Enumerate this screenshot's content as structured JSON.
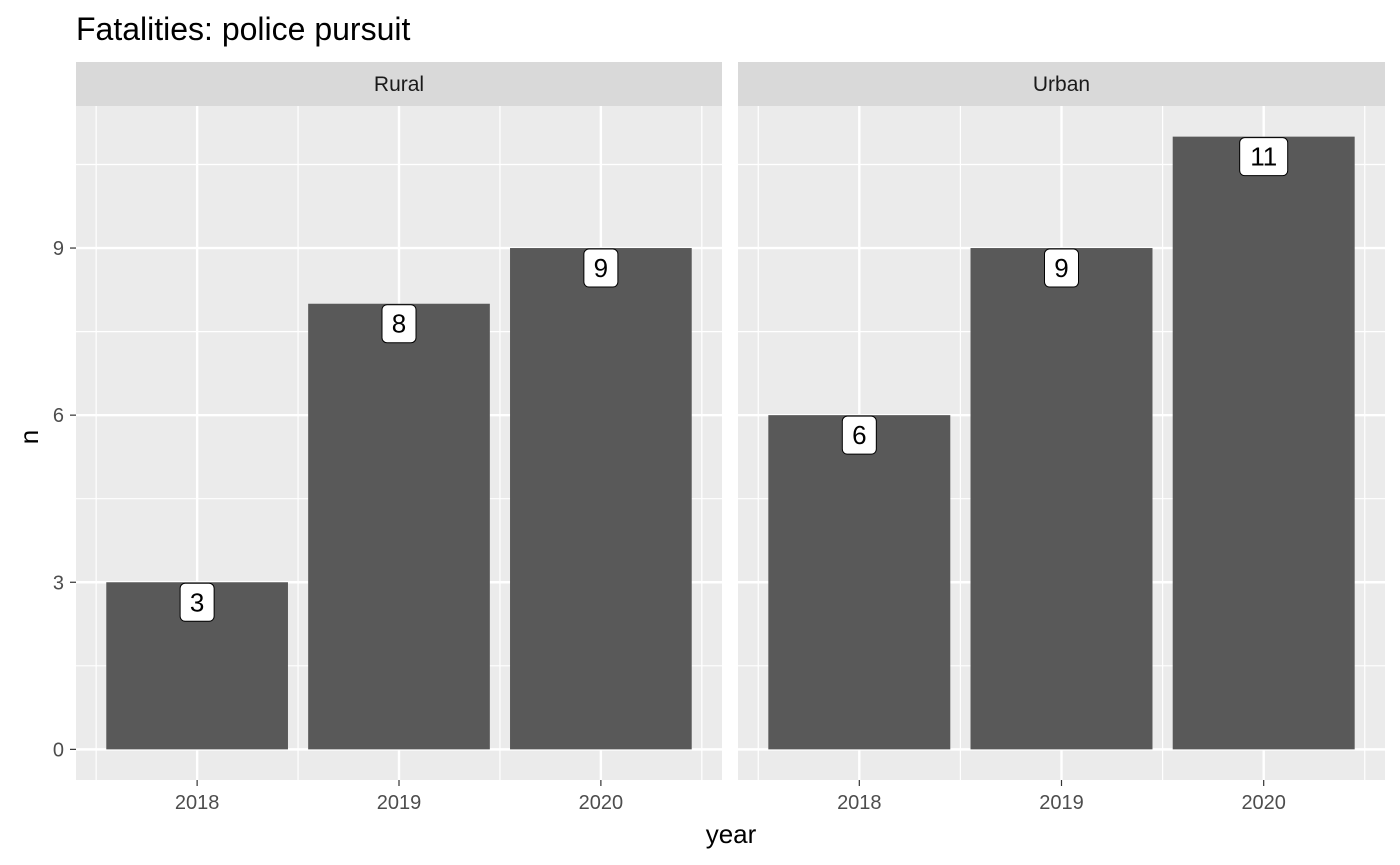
{
  "chart_data": {
    "type": "bar",
    "title": "Fatalities: police pursuit",
    "xlabel": "year",
    "ylabel": "n",
    "ylim": [
      -0.55,
      11.55
    ],
    "yticks": [
      0,
      3,
      6,
      9
    ],
    "grid": true,
    "bar_color": "#595959",
    "panel_bg": "#ebebeb",
    "strip_bg": "#d9d9d9",
    "categories": [
      "2018",
      "2019",
      "2020"
    ],
    "panels": [
      {
        "name": "Rural",
        "values": [
          3,
          8,
          9
        ]
      },
      {
        "name": "Urban",
        "values": [
          6,
          9,
          11
        ]
      }
    ]
  }
}
